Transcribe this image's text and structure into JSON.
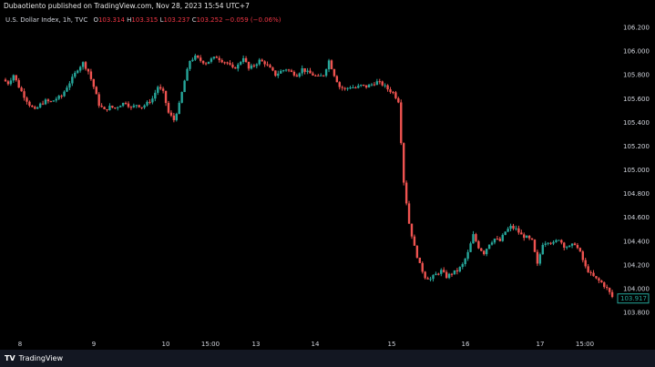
{
  "header": {
    "published_by": "Dubaotiento published on TradingView.com, Nov 28, 2023 15:54 UTC+7"
  },
  "legend": {
    "symbol": "U.S. Dollar Index, 1h, TVC",
    "o_label": "O",
    "o_value": "103.314",
    "h_label": "H",
    "h_value": "103.315",
    "l_label": "L",
    "l_value": "103.237",
    "c_label": "C",
    "c_value": "103.252",
    "change": "−0.059 (−0.06%)"
  },
  "footer": {
    "logo": "TV",
    "brand": "TradingView"
  },
  "colors": {
    "up": "#26a69a",
    "down": "#ef5350",
    "background": "#000000",
    "axis_text": "#d1d4dc",
    "price_tag": "#26a69a"
  },
  "chart_data": {
    "type": "candlestick",
    "x_ticks": [
      "8",
      "9",
      "10",
      "15:00",
      "13",
      "14",
      "15",
      "16",
      "17",
      "15:00"
    ],
    "y_ticks": [
      "106.200",
      "106.000",
      "105.800",
      "105.600",
      "105.400",
      "105.200",
      "105.000",
      "104.800",
      "104.600",
      "104.400",
      "104.200",
      "104.000",
      "103.800"
    ],
    "ylim": [
      103.75,
      106.25
    ],
    "last_price": "103.917",
    "close_path": [
      105.76,
      105.73,
      105.8,
      105.7,
      105.62,
      105.55,
      105.5,
      105.55,
      105.58,
      105.57,
      105.6,
      105.62,
      105.7,
      105.77,
      105.85,
      105.9,
      105.83,
      105.7,
      105.55,
      105.5,
      105.53,
      105.52,
      105.55,
      105.57,
      105.52,
      105.55,
      105.53,
      105.56,
      105.6,
      105.7,
      105.65,
      105.48,
      105.42,
      105.55,
      105.75,
      105.92,
      105.95,
      105.92,
      105.9,
      105.93,
      105.95,
      105.92,
      105.9,
      105.85,
      105.88,
      105.95,
      105.85,
      105.88,
      105.92,
      105.9,
      105.85,
      105.8,
      105.83,
      105.85,
      105.82,
      105.8,
      105.85,
      105.82,
      105.8,
      105.78,
      105.8,
      105.92,
      105.8,
      105.7,
      105.68,
      105.7,
      105.69,
      105.71,
      105.7,
      105.72,
      105.74,
      105.72,
      105.68,
      105.65,
      105.58,
      104.9,
      104.55,
      104.35,
      104.2,
      104.1,
      104.08,
      104.12,
      104.15,
      104.1,
      104.13,
      104.15,
      104.2,
      104.3,
      104.45,
      104.35,
      104.3,
      104.38,
      104.42,
      104.4,
      104.48,
      104.52,
      104.5,
      104.45,
      104.43,
      104.4,
      104.2,
      104.38,
      104.4,
      104.38,
      104.42,
      104.36,
      104.35,
      104.38,
      104.3,
      104.18,
      104.12,
      104.08,
      104.05,
      104.0,
      103.93
    ]
  }
}
